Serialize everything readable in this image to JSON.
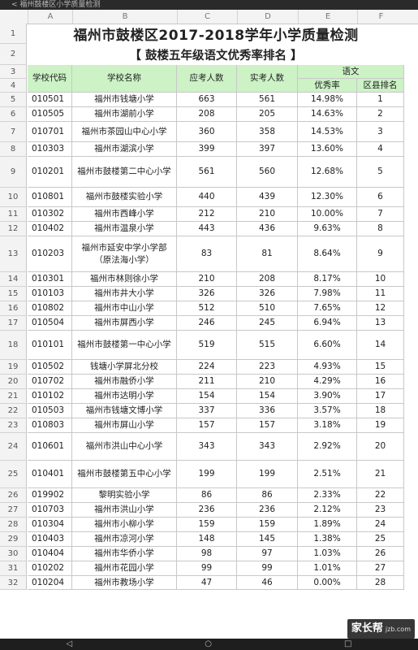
{
  "topbar": {
    "text": "< 福州鼓楼区小学质量检测"
  },
  "columns": [
    "A",
    "B",
    "C",
    "D",
    "E",
    "F"
  ],
  "sheet": {
    "title": "福州市鼓楼区2017-2018学年小学质量检测",
    "subtitle": "【 鼓楼五年级语文优秀率排名 】",
    "headers": {
      "code": "学校代码",
      "name": "学校名称",
      "expected": "应考人数",
      "actual": "实考人数",
      "subject": "语文",
      "rate": "优秀率",
      "rank": "区县排名"
    },
    "rows": [
      {
        "code": "010501",
        "name": "福州市钱塘小学",
        "expected": "663",
        "actual": "561",
        "rate": "14.98%",
        "rank": "1"
      },
      {
        "code": "010505",
        "name": "福州市湖前小学",
        "expected": "208",
        "actual": "205",
        "rate": "14.63%",
        "rank": "2"
      },
      {
        "code": "010701",
        "name": "福州市茶园山中心小学",
        "expected": "360",
        "actual": "358",
        "rate": "14.53%",
        "rank": "3"
      },
      {
        "code": "010303",
        "name": "福州市湖滨小学",
        "expected": "399",
        "actual": "397",
        "rate": "13.60%",
        "rank": "4"
      },
      {
        "code": "010201",
        "name": "福州市鼓楼第二中心小学",
        "expected": "561",
        "actual": "560",
        "rate": "12.68%",
        "rank": "5"
      },
      {
        "code": "010801",
        "name": "福州市鼓楼实验小学",
        "expected": "440",
        "actual": "439",
        "rate": "12.30%",
        "rank": "6"
      },
      {
        "code": "010302",
        "name": "福州市西峰小学",
        "expected": "212",
        "actual": "210",
        "rate": "10.00%",
        "rank": "7"
      },
      {
        "code": "010402",
        "name": "福州市温泉小学",
        "expected": "443",
        "actual": "436",
        "rate": "9.63%",
        "rank": "8"
      },
      {
        "code": "010203",
        "name": "福州市延安中学小学部（原法海小学）",
        "expected": "83",
        "actual": "81",
        "rate": "8.64%",
        "rank": "9"
      },
      {
        "code": "010301",
        "name": "福州市林则徐小学",
        "expected": "210",
        "actual": "208",
        "rate": "8.17%",
        "rank": "10"
      },
      {
        "code": "010103",
        "name": "福州市井大小学",
        "expected": "326",
        "actual": "326",
        "rate": "7.98%",
        "rank": "11"
      },
      {
        "code": "010802",
        "name": "福州市中山小学",
        "expected": "512",
        "actual": "510",
        "rate": "7.65%",
        "rank": "12"
      },
      {
        "code": "010504",
        "name": "福州市屏西小学",
        "expected": "246",
        "actual": "245",
        "rate": "6.94%",
        "rank": "13"
      },
      {
        "code": "010101",
        "name": "福州市鼓楼第一中心小学",
        "expected": "519",
        "actual": "515",
        "rate": "6.60%",
        "rank": "14"
      },
      {
        "code": "010502",
        "name": "钱塘小学屏北分校",
        "expected": "224",
        "actual": "223",
        "rate": "4.93%",
        "rank": "15"
      },
      {
        "code": "010702",
        "name": "福州市融侨小学",
        "expected": "211",
        "actual": "210",
        "rate": "4.29%",
        "rank": "16"
      },
      {
        "code": "010102",
        "name": "福州市达明小学",
        "expected": "154",
        "actual": "154",
        "rate": "3.90%",
        "rank": "17"
      },
      {
        "code": "010503",
        "name": "福州市钱塘文博小学",
        "expected": "337",
        "actual": "336",
        "rate": "3.57%",
        "rank": "18"
      },
      {
        "code": "010803",
        "name": "福州市屏山小学",
        "expected": "157",
        "actual": "157",
        "rate": "3.18%",
        "rank": "19"
      },
      {
        "code": "010601",
        "name": "福州市洪山中心小学",
        "expected": "343",
        "actual": "343",
        "rate": "2.92%",
        "rank": "20"
      },
      {
        "code": "010401",
        "name": "福州市鼓楼第五中心小学",
        "expected": "199",
        "actual": "199",
        "rate": "2.51%",
        "rank": "21"
      },
      {
        "code": "019902",
        "name": "黎明实验小学",
        "expected": "86",
        "actual": "86",
        "rate": "2.33%",
        "rank": "22"
      },
      {
        "code": "010703",
        "name": "福州市洪山小学",
        "expected": "236",
        "actual": "236",
        "rate": "2.12%",
        "rank": "23"
      },
      {
        "code": "010304",
        "name": "福州市小柳小学",
        "expected": "159",
        "actual": "159",
        "rate": "1.89%",
        "rank": "24"
      },
      {
        "code": "010403",
        "name": "福州市凉河小学",
        "expected": "148",
        "actual": "145",
        "rate": "1.38%",
        "rank": "25"
      },
      {
        "code": "010404",
        "name": "福州市华侨小学",
        "expected": "98",
        "actual": "97",
        "rate": "1.03%",
        "rank": "26"
      },
      {
        "code": "010202",
        "name": "福州市花园小学",
        "expected": "99",
        "actual": "99",
        "rate": "1.01%",
        "rank": "27"
      },
      {
        "code": "010204",
        "name": "福州市教场小学",
        "expected": "47",
        "actual": "46",
        "rate": "0.00%",
        "rank": "28"
      }
    ]
  },
  "watermark": {
    "brand": "家长帮",
    "domain": "jzb.com"
  },
  "navbar": {
    "back": "◁",
    "home": "○",
    "recent": "□"
  }
}
